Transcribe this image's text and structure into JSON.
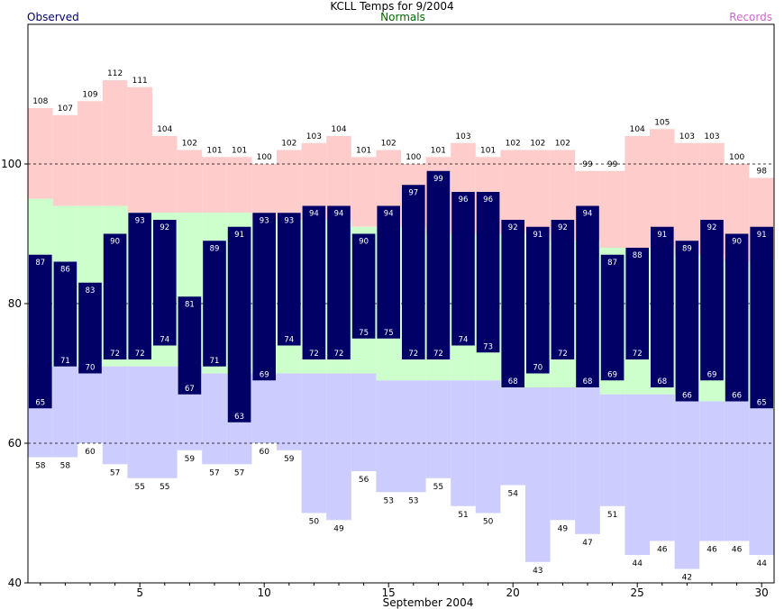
{
  "chart_data": {
    "type": "bar",
    "title": "KCLL Temps for 9/2004",
    "xlabel": "September 2004",
    "ylabel": "",
    "ylim": [
      40,
      120
    ],
    "xlim": [
      0.5,
      30.5
    ],
    "yticks": [
      40,
      60,
      80,
      100
    ],
    "xticks": [
      5,
      10,
      15,
      20,
      25,
      30
    ],
    "gridlines_y": [
      60,
      80,
      100
    ],
    "legend": [
      {
        "name": "Observed",
        "color": "#000066",
        "placement": "top-left"
      },
      {
        "name": "Normals",
        "color": "#006600",
        "placement": "top-center"
      },
      {
        "name": "Records",
        "color": "#cc66cc",
        "placement": "top-right"
      }
    ],
    "colors": {
      "observed": "#000066",
      "normals_fill": "#ccffcc",
      "record_high_fill": "#ffcccc",
      "record_low_fill": "#ccccff",
      "observed_label": "#ffffff"
    },
    "days": [
      1,
      2,
      3,
      4,
      5,
      6,
      7,
      8,
      9,
      10,
      11,
      12,
      13,
      14,
      15,
      16,
      17,
      18,
      19,
      20,
      21,
      22,
      23,
      24,
      25,
      26,
      27,
      28,
      29,
      30
    ],
    "observed_high": [
      87,
      86,
      83,
      90,
      93,
      92,
      81,
      89,
      91,
      93,
      93,
      94,
      94,
      90,
      94,
      97,
      99,
      96,
      96,
      92,
      91,
      92,
      94,
      87,
      88,
      91,
      89,
      92,
      90,
      91
    ],
    "observed_low": [
      65,
      71,
      70,
      72,
      72,
      74,
      67,
      71,
      63,
      69,
      74,
      72,
      72,
      75,
      75,
      72,
      72,
      74,
      73,
      68,
      70,
      72,
      68,
      69,
      72,
      68,
      66,
      69,
      66,
      65
    ],
    "record_high": [
      108,
      107,
      109,
      112,
      111,
      104,
      102,
      101,
      101,
      100,
      102,
      103,
      104,
      101,
      102,
      100,
      101,
      103,
      101,
      102,
      102,
      102,
      99,
      99,
      104,
      105,
      103,
      103,
      100,
      98
    ],
    "record_low": [
      58,
      58,
      60,
      57,
      55,
      55,
      59,
      57,
      57,
      60,
      59,
      50,
      49,
      56,
      53,
      53,
      55,
      51,
      50,
      54,
      43,
      49,
      47,
      51,
      44,
      46,
      42,
      46,
      46,
      44
    ],
    "normal_high": [
      95,
      94,
      94,
      94,
      93,
      93,
      93,
      93,
      93,
      92,
      92,
      92,
      92,
      91,
      91,
      91,
      90,
      90,
      90,
      90,
      90,
      89,
      89,
      88,
      88,
      88,
      87,
      87,
      86,
      86
    ],
    "normal_low": [
      71,
      71,
      71,
      71,
      71,
      71,
      71,
      70,
      70,
      70,
      70,
      70,
      70,
      70,
      69,
      69,
      69,
      69,
      69,
      68,
      68,
      68,
      68,
      67,
      67,
      67,
      66,
      66,
      66,
      65
    ]
  }
}
